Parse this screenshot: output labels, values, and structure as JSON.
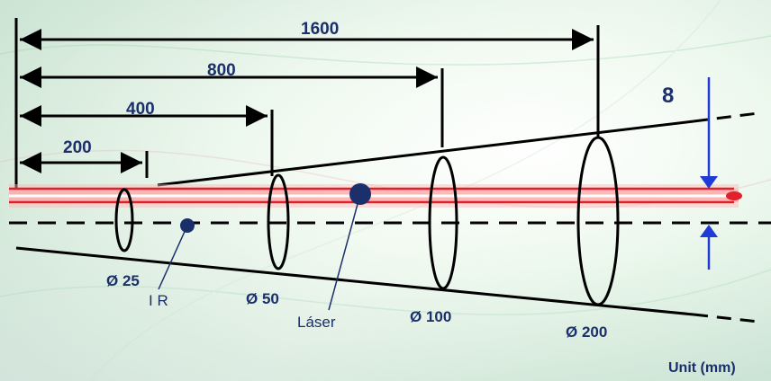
{
  "distances": {
    "d200": "200",
    "d400": "400",
    "d800": "800",
    "d1600": "1600"
  },
  "diameters": {
    "dia25": "Ø 25",
    "dia50": "Ø 50",
    "dia100": "Ø 100",
    "dia200": "Ø 200"
  },
  "labels": {
    "ir": "I R",
    "laser": "Láser",
    "offset": "8",
    "unit": "Unit (mm)"
  },
  "colors": {
    "text": "#1b2f6b",
    "laser": "#e0202a",
    "offset_arrow": "#1f3ad6",
    "lines": "#000000"
  }
}
